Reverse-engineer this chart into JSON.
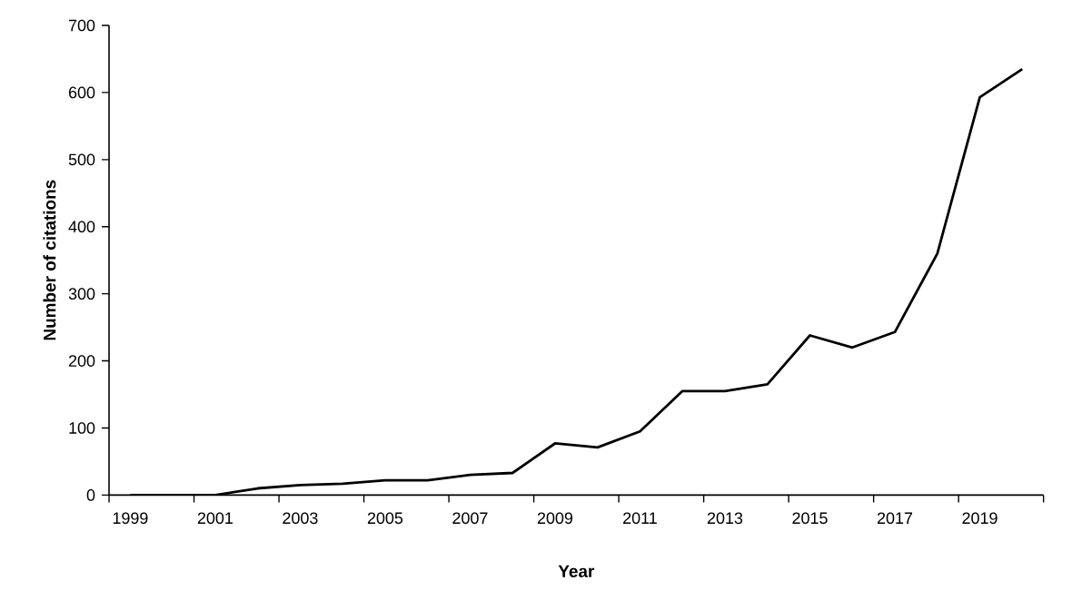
{
  "chart_data": {
    "type": "line",
    "xlabel": "Year",
    "ylabel": "Number of citations",
    "categories": [
      "1999",
      null,
      "2001",
      null,
      "2003",
      null,
      "2005",
      null,
      "2007",
      null,
      "2009",
      null,
      "2011",
      null,
      "2013",
      null,
      "2015",
      null,
      "2017",
      null,
      "2019",
      null
    ],
    "series": [
      {
        "color": "#000000",
        "values": [
          0,
          0,
          0,
          10,
          15,
          17,
          22,
          22,
          30,
          33,
          77,
          71,
          95,
          155,
          155,
          165,
          238,
          220,
          243,
          360,
          593,
          635
        ]
      }
    ],
    "ylim": [
      0,
      700
    ],
    "yticks": [
      0,
      100,
      200,
      300,
      400,
      500,
      600,
      700
    ],
    "grid": false,
    "marker": "none",
    "line_style": "solid"
  }
}
